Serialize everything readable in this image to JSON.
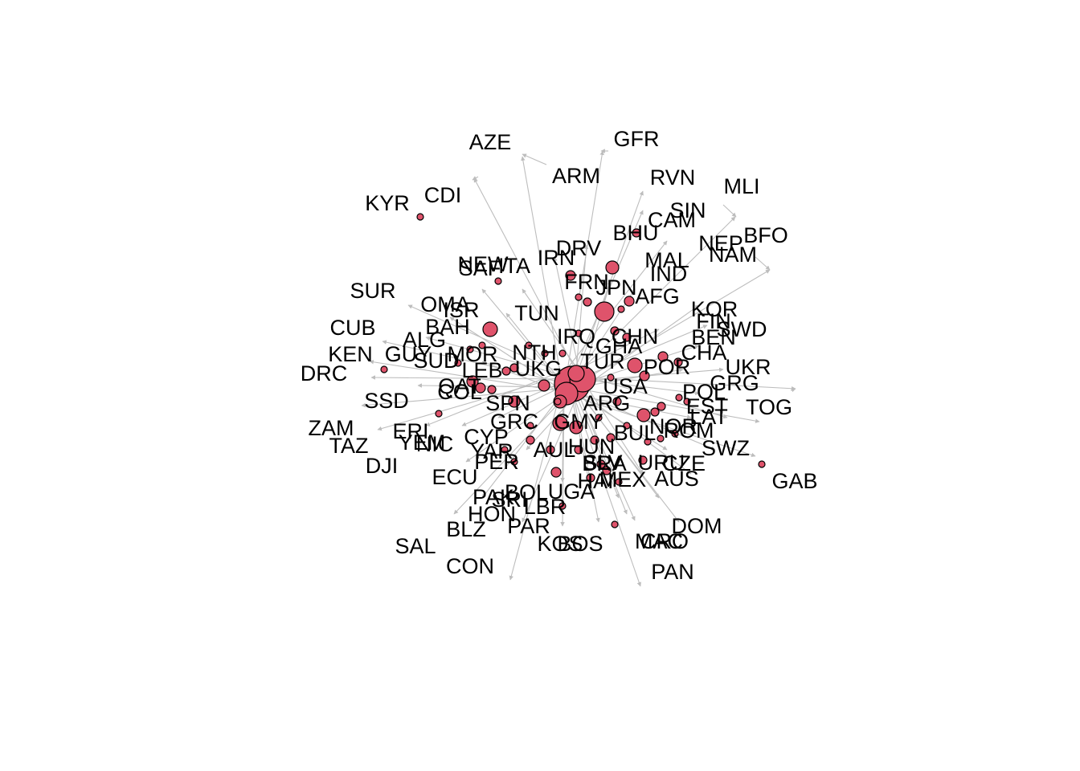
{
  "graph": {
    "node_color": "#DF536B",
    "edge_color": "#bdbdbd",
    "label_color": "#000000",
    "labels": [
      "AZE",
      "GFR",
      "ARM",
      "RVN",
      "MLI",
      "KYR",
      "CDI",
      "SIN",
      "CAM",
      "BFO",
      "BHU",
      "NEP",
      "NAM",
      "DRV",
      "MAL",
      "IND",
      "NEW",
      "SAF",
      "ITA",
      "FRN",
      "JPN",
      "AFG",
      "SUR",
      "OMA",
      "ISR",
      "TUN",
      "KOR",
      "CUB",
      "BAH",
      "FIN",
      "SWD",
      "BEN",
      "IRQ",
      "CHN",
      "ALG",
      "KEN",
      "GUY",
      "MOR",
      "SUD",
      "NTH",
      "CHA",
      "UKR",
      "DRC",
      "UKG",
      "TUR",
      "POR",
      "GRG",
      "USA",
      "QAT",
      "SSD",
      "COL",
      "SPN",
      "ARG",
      "POL",
      "EST",
      "TOG",
      "ZAM",
      "ERI",
      "GRC",
      "GMY",
      "LAT",
      "ROM",
      "TAZ",
      "YEM",
      "NIC",
      "CYP",
      "BUL",
      "SWZ",
      "DJI",
      "YAR",
      "AUL",
      "HUN",
      "CZE",
      "PER",
      "BRA",
      "URU",
      "SLV",
      "ECU",
      "MEX",
      "AUS",
      "GAB",
      "PAK",
      "BOL",
      "UGA",
      "SRI",
      "HON",
      "PAR",
      "LBR",
      "BLZ",
      "DOM",
      "SAL",
      "KOS",
      "BOS",
      "CRO",
      "MAC",
      "CON",
      "PAN",
      "HAI",
      "GHA",
      "NOR",
      "LEB",
      "IRN"
    ]
  }
}
